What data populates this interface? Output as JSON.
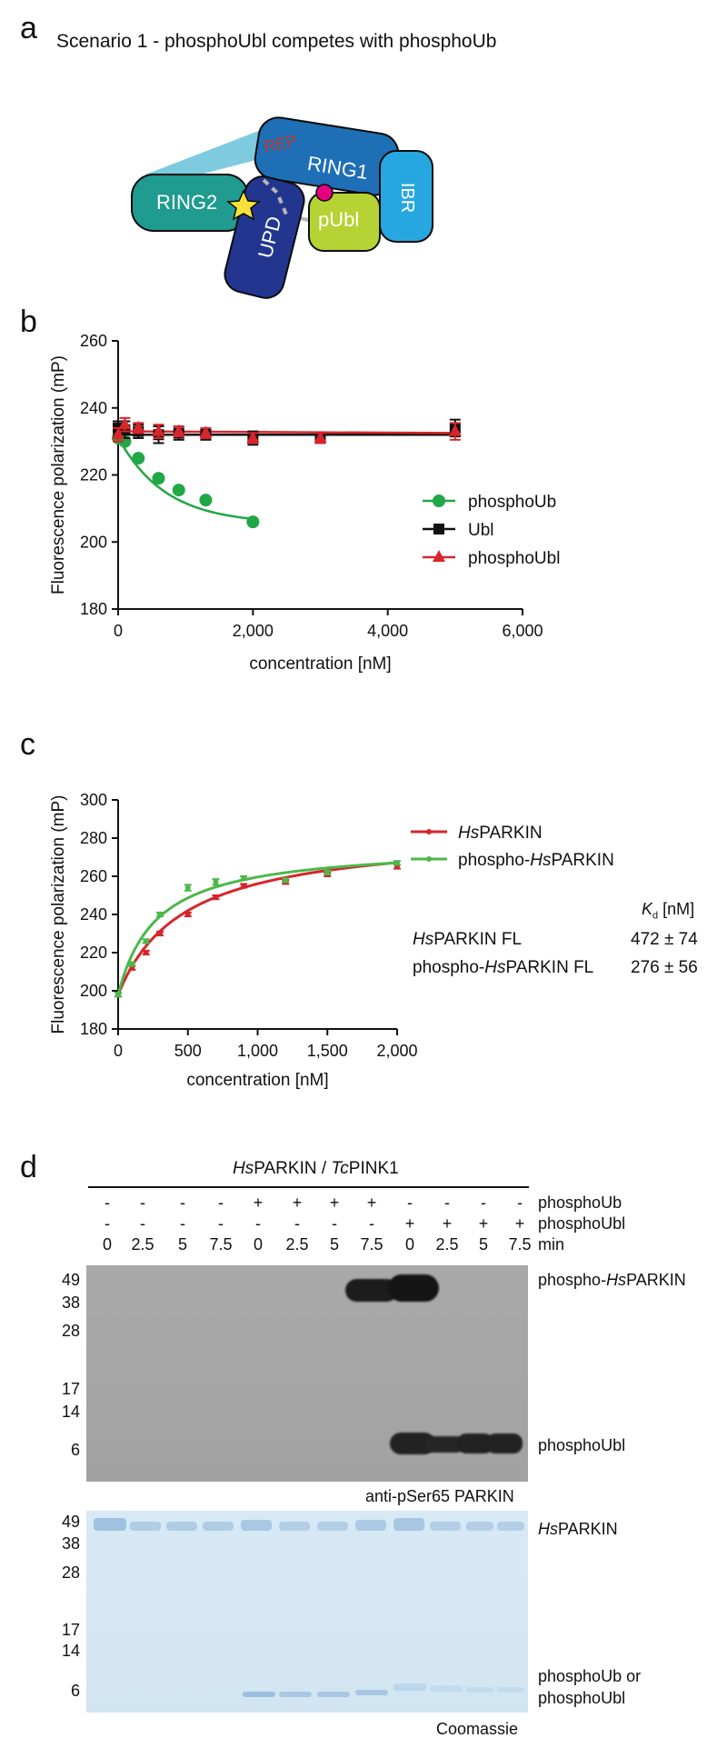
{
  "panels": {
    "a": {
      "letter": "a",
      "title": "Scenario 1 - phosphoUbl competes with phosphoUb",
      "domains": {
        "rep": "REP",
        "ring1": "RING1",
        "ring2": "RING2",
        "ibr": "IBR",
        "upd": "UPD",
        "publ": "pUbl"
      },
      "colors": {
        "rep": "#7ecbe0",
        "ring1": "#1e6fb5",
        "ring2": "#1f9b8f",
        "ibr": "#27a7e0",
        "upd": "#23368f",
        "publ": "#b5d334",
        "star": "#f7e23b",
        "phospho": "#e4007f",
        "rep_label": "#c0392b"
      }
    },
    "b": {
      "letter": "b",
      "chart_data": {
        "type": "scatter",
        "xlabel": "concentration [nM]",
        "ylabel": "Fluorescence polarization (mP)",
        "xlim": [
          0,
          6000
        ],
        "ylim": [
          180,
          260
        ],
        "xticks": [
          0,
          2000,
          4000,
          6000
        ],
        "xtick_labels": [
          "0",
          "2,000",
          "4,000",
          "6,000"
        ],
        "yticks": [
          180,
          200,
          220,
          240,
          260
        ],
        "ytick_labels": [
          "180",
          "200",
          "220",
          "240",
          "260"
        ],
        "legend_position": "right",
        "series": [
          {
            "name": "phosphoUb",
            "color": "#1fa845",
            "marker": "circle",
            "x": [
              0,
              100,
              300,
              600,
              900,
              1300,
              2000
            ],
            "y": [
              231,
              230,
              225,
              219,
              215.5,
              212.5,
              206
            ],
            "err": [
              0,
              0,
              0,
              0,
              0,
              0,
              0
            ]
          },
          {
            "name": "Ubl",
            "color": "#111111",
            "marker": "square",
            "x": [
              0,
              100,
              300,
              600,
              900,
              1300,
              2000,
              3000,
              5000
            ],
            "y": [
              234,
              233.5,
              233,
              232,
              232.5,
              232,
              231,
              231,
              234
            ],
            "err": [
              2,
              2.5,
              2,
              2.5,
              2,
              1.5,
              2,
              1.5,
              2.5
            ]
          },
          {
            "name": "phosphoUbl",
            "color": "#d6262b",
            "marker": "triangle",
            "x": [
              0,
              100,
              300,
              600,
              900,
              1300,
              2000,
              3000,
              5000
            ],
            "y": [
              232,
              235,
              234,
              233,
              233,
              232.5,
              231,
              231,
              233
            ],
            "err": [
              2,
              2,
              1.5,
              2,
              1.5,
              1.5,
              1.5,
              1.5,
              2.5
            ]
          }
        ]
      }
    },
    "c": {
      "letter": "c",
      "chart_data": {
        "type": "scatter",
        "xlabel": "concentration [nM]",
        "ylabel": "Fluorescence polarization (mP)",
        "xlim": [
          0,
          2000
        ],
        "ylim": [
          180,
          300
        ],
        "xticks": [
          0,
          500,
          1000,
          1500,
          2000
        ],
        "xtick_labels": [
          "0",
          "500",
          "1,000",
          "1,500",
          "2,000"
        ],
        "yticks": [
          180,
          200,
          220,
          240,
          260,
          280,
          300
        ],
        "ytick_labels": [
          "180",
          "200",
          "220",
          "240",
          "260",
          "280",
          "300"
        ],
        "legend_position": "top-right",
        "series": [
          {
            "name_prefix": "Hs",
            "name_suffix": "PARKIN",
            "color": "#d6262b",
            "x": [
              0,
              100,
              200,
              300,
              500,
              700,
              900,
              1200,
              1500,
              2000
            ],
            "y": [
              198,
              212,
              220,
              230,
              240,
              249,
              255,
              257,
              261,
              265
            ],
            "err": [
              1,
              1,
              1,
              1,
              1,
              1,
              1,
              1,
              1,
              1
            ],
            "fit": {
              "y0": 198,
              "bmax": 85.5,
              "kd": 472
            }
          },
          {
            "name_prefix": "phospho-",
            "name_italic": "Hs",
            "name_suffix": "PARKIN",
            "color": "#4cb84a",
            "x": [
              0,
              100,
              200,
              300,
              500,
              700,
              900,
              1200,
              1500,
              2000
            ],
            "y": [
              198,
              214,
              226,
              240,
              254,
              257,
              259,
              258,
              262,
              267
            ],
            "err": [
              1,
              1,
              1,
              1,
              1.5,
              1.5,
              1,
              1,
              1,
              1
            ],
            "fit": {
              "y0": 198,
              "bmax": 78.6,
              "kd": 276
            }
          }
        ],
        "kd_table": {
          "header_k": "K",
          "header_sub": "d",
          "header_unit": " [nM]",
          "rows": [
            {
              "label_italic": "Hs",
              "label_rest": "PARKIN FL",
              "value": "472 ± 74"
            },
            {
              "label_prefix": "phospho-",
              "label_italic": "Hs",
              "label_rest": "PARKIN FL",
              "value": "276 ± 56"
            }
          ]
        }
      }
    },
    "d": {
      "letter": "d",
      "header_italic1": "Hs",
      "header_rest1": "PARKIN / ",
      "header_italic2": "Tc",
      "header_rest2": "PINK1",
      "rows": {
        "phosphoUb": [
          "-",
          "-",
          "-",
          "-",
          "+",
          "+",
          "+",
          "+",
          "-",
          "-",
          "-",
          "-"
        ],
        "phosphoUbl": [
          "-",
          "-",
          "-",
          "-",
          "-",
          "-",
          "-",
          "-",
          "+",
          "+",
          "+",
          "+"
        ],
        "min": [
          "0",
          "2.5",
          "5",
          "7.5",
          "0",
          "2.5",
          "5",
          "7.5",
          "0",
          "2.5",
          "5",
          "7.5"
        ]
      },
      "row_labels": {
        "phosphoUb": "phosphoUb",
        "phosphoUbl": "phosphoUbl",
        "min": "min"
      },
      "mw_markers": [
        "49",
        "38",
        "28",
        "17",
        "14",
        "6"
      ],
      "blot1": {
        "band_label_prefix": "phospho-",
        "band_label_italic": "Hs",
        "band_label_rest": "PARKIN",
        "band_label2": "phosphoUbl",
        "caption": "anti-pSer65 PARKIN"
      },
      "blot2": {
        "band_label_italic": "Hs",
        "band_label_rest": "PARKIN",
        "band_label2_line1": "phosphoUb or",
        "band_label2_line2": "phosphoUbl",
        "caption": "Coomassie"
      }
    }
  }
}
